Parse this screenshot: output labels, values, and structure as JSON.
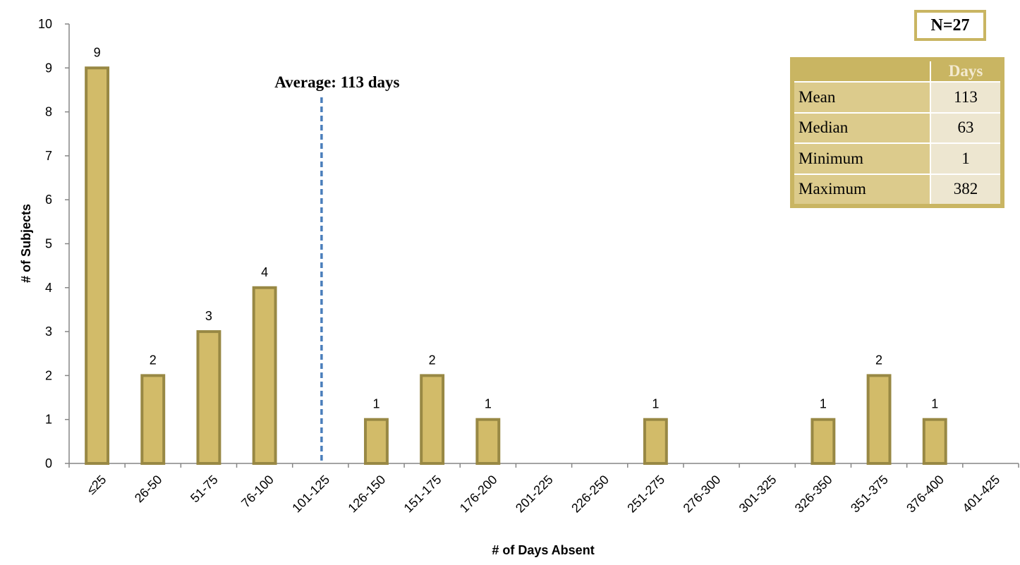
{
  "chart_data": {
    "type": "bar",
    "categories": [
      "≤25",
      "26-50",
      "51-75",
      "76-100",
      "101-125",
      "126-150",
      "151-175",
      "176-200",
      "201-225",
      "226-250",
      "251-275",
      "276-300",
      "301-325",
      "326-350",
      "351-375",
      "376-400",
      "401-425"
    ],
    "values": [
      9,
      2,
      3,
      4,
      0,
      1,
      2,
      1,
      0,
      0,
      1,
      0,
      0,
      1,
      2,
      1,
      0
    ],
    "data_labels": [
      "9",
      "2",
      "3",
      "4",
      "",
      "1",
      "2",
      "1",
      "",
      "",
      "1",
      "",
      "",
      "1",
      "2",
      "1",
      ""
    ],
    "xlabel": "# of Days Absent",
    "ylabel": "# of Subjects",
    "ylim": [
      0,
      10
    ],
    "yticks": [
      "0",
      "1",
      "2",
      "3",
      "4",
      "5",
      "6",
      "7",
      "8",
      "9",
      "10"
    ],
    "grid": false,
    "bar_color": "#d2bb69",
    "bar_edge_color": "#988844",
    "average_line": {
      "value": 113,
      "label": "Average: 113 days",
      "color": "#4a7ebb"
    }
  },
  "n_box": {
    "label": "N=27"
  },
  "stats_table": {
    "header": "Days",
    "rows": [
      {
        "name": "Mean",
        "value": "113"
      },
      {
        "name": "Median",
        "value": "63"
      },
      {
        "name": "Minimum",
        "value": "1"
      },
      {
        "name": "Maximum",
        "value": "382"
      }
    ]
  }
}
